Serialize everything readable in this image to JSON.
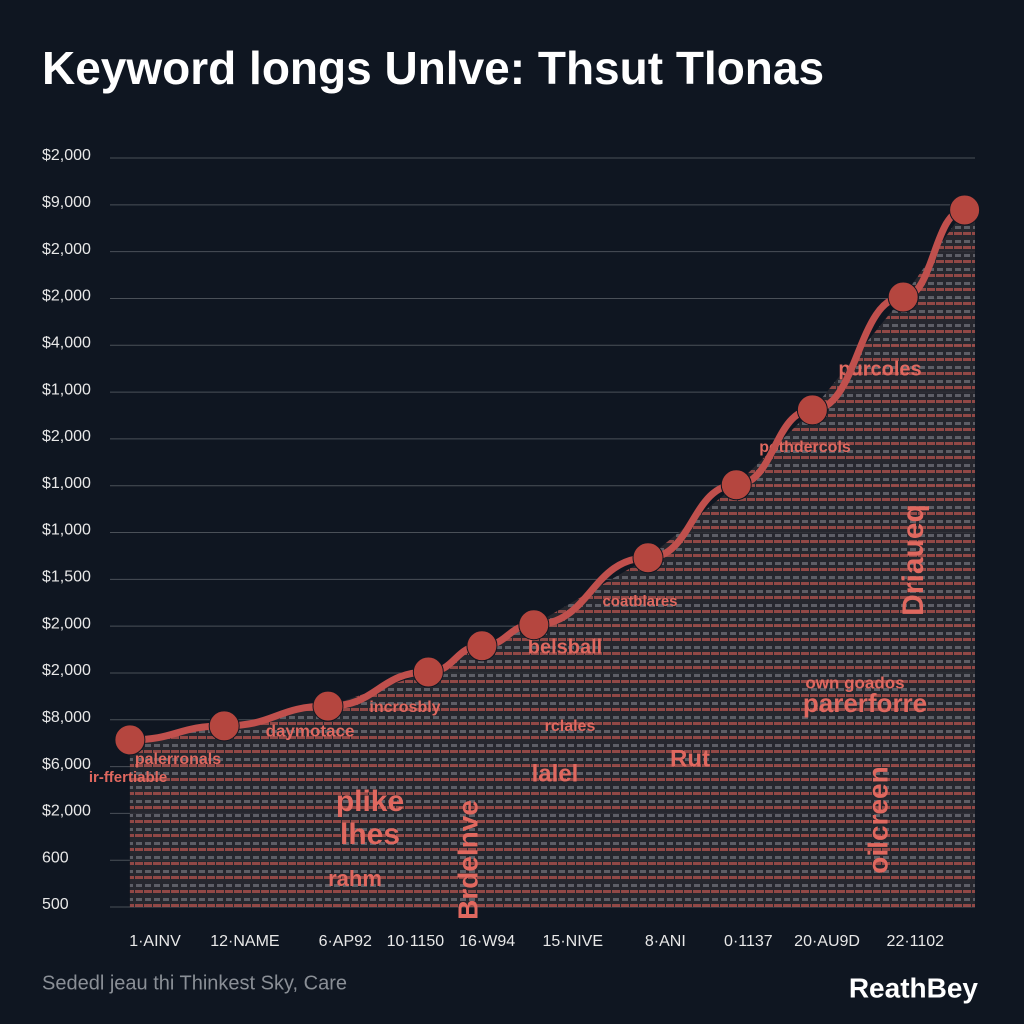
{
  "chart_data": {
    "type": "line",
    "title": "Keyword longs Unlve: Thsut Tlonas",
    "footer": "Sededl jeau thi Thinkest Sky, Care",
    "brand": "ReathBey",
    "color": "#c0504d",
    "grid": true,
    "x": [
      2.3,
      13.2,
      25.2,
      36.8,
      43.0,
      49.0,
      62.2,
      72.4,
      81.2,
      91.7,
      98.8
    ],
    "series": [
      {
        "name": "Keyword",
        "color": "#c0504d",
        "values": [
          3.57,
          3.87,
          4.29,
          5.02,
          5.58,
          6.03,
          7.46,
          9.02,
          10.62,
          13.03,
          14.89
        ]
      }
    ],
    "xlim": [
      0,
      100
    ],
    "xticks": [
      {
        "value": 5.2,
        "label": "1·AINV"
      },
      {
        "value": 15.6,
        "label": "12·NAME"
      },
      {
        "value": 27.2,
        "label": "6·AP92"
      },
      {
        "value": 35.3,
        "label": "10·1150"
      },
      {
        "value": 43.6,
        "label": "16·W94"
      },
      {
        "value": 53.5,
        "label": "15·NIVE"
      },
      {
        "value": 64.2,
        "label": "8·ANI"
      },
      {
        "value": 73.8,
        "label": "0·1137"
      },
      {
        "value": 82.9,
        "label": "20·AU9D"
      },
      {
        "value": 93.1,
        "label": "22·1102"
      }
    ],
    "ylim": [
      0,
      16
    ],
    "yticks": [
      {
        "value": 0,
        "label": "500"
      },
      {
        "value": 1,
        "label": "600"
      },
      {
        "value": 2,
        "label": "$2,000"
      },
      {
        "value": 3,
        "label": "$6,000"
      },
      {
        "value": 4,
        "label": "$8,000"
      },
      {
        "value": 5,
        "label": "$2,000"
      },
      {
        "value": 6,
        "label": "$2,000"
      },
      {
        "value": 7,
        "label": "$1,500"
      },
      {
        "value": 8,
        "label": "$1,000"
      },
      {
        "value": 9,
        "label": "$1,000"
      },
      {
        "value": 10,
        "label": "$2,000"
      },
      {
        "value": 11,
        "label": "$1,000"
      },
      {
        "value": 12,
        "label": "$4,000"
      },
      {
        "value": 13,
        "label": "$2,000"
      },
      {
        "value": 14,
        "label": "$2,000"
      },
      {
        "value": 15,
        "label": "$9,000"
      },
      {
        "value": 16,
        "label": "$2,000"
      }
    ],
    "annotations": [
      "purcoles",
      "pothdercols",
      "coatblares",
      "belsball",
      "incrosbly",
      "daymotace",
      "palerronals",
      "ir-ffertiable",
      "plike",
      "lhes",
      "rahm",
      "Brdelnve",
      "parerforre",
      "own goados",
      "oilcreen",
      "Driaueq",
      "rclales",
      "lalel",
      "Rut"
    ]
  }
}
